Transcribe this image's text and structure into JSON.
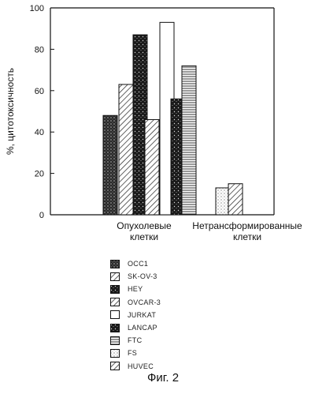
{
  "chart_data": {
    "type": "bar",
    "title": "",
    "xlabel": "",
    "ylabel": "%, цитотоксичность",
    "ylim": [
      0,
      100
    ],
    "yticks": [
      0,
      20,
      40,
      60,
      80,
      100
    ],
    "grid": false,
    "legend_position": "bottom",
    "categories": [
      [
        "Опухолевые",
        "клетки"
      ],
      [
        "Нетрансформированные",
        "клетки"
      ]
    ],
    "series": [
      {
        "name": "OCC1",
        "pattern": "dense-dots",
        "values": [
          48,
          null
        ]
      },
      {
        "name": "SK-OV-3",
        "pattern": "diagonal",
        "values": [
          63,
          null
        ]
      },
      {
        "name": "HEY",
        "pattern": "dark-speckle",
        "values": [
          87,
          null
        ]
      },
      {
        "name": "OVCAR-3",
        "pattern": "diagonal",
        "values": [
          46,
          null
        ]
      },
      {
        "name": "JURKAT",
        "pattern": "blank",
        "values": [
          93,
          null
        ]
      },
      {
        "name": "LANCAP",
        "pattern": "dark-speckle",
        "values": [
          56,
          null
        ]
      },
      {
        "name": "FTC",
        "pattern": "horizontal",
        "values": [
          72,
          null
        ]
      },
      {
        "name": "FS",
        "pattern": "light-dots",
        "values": [
          null,
          13
        ]
      },
      {
        "name": "HUVEC",
        "pattern": "diagonal",
        "values": [
          null,
          15
        ]
      }
    ]
  },
  "caption": "Фиг. 2"
}
